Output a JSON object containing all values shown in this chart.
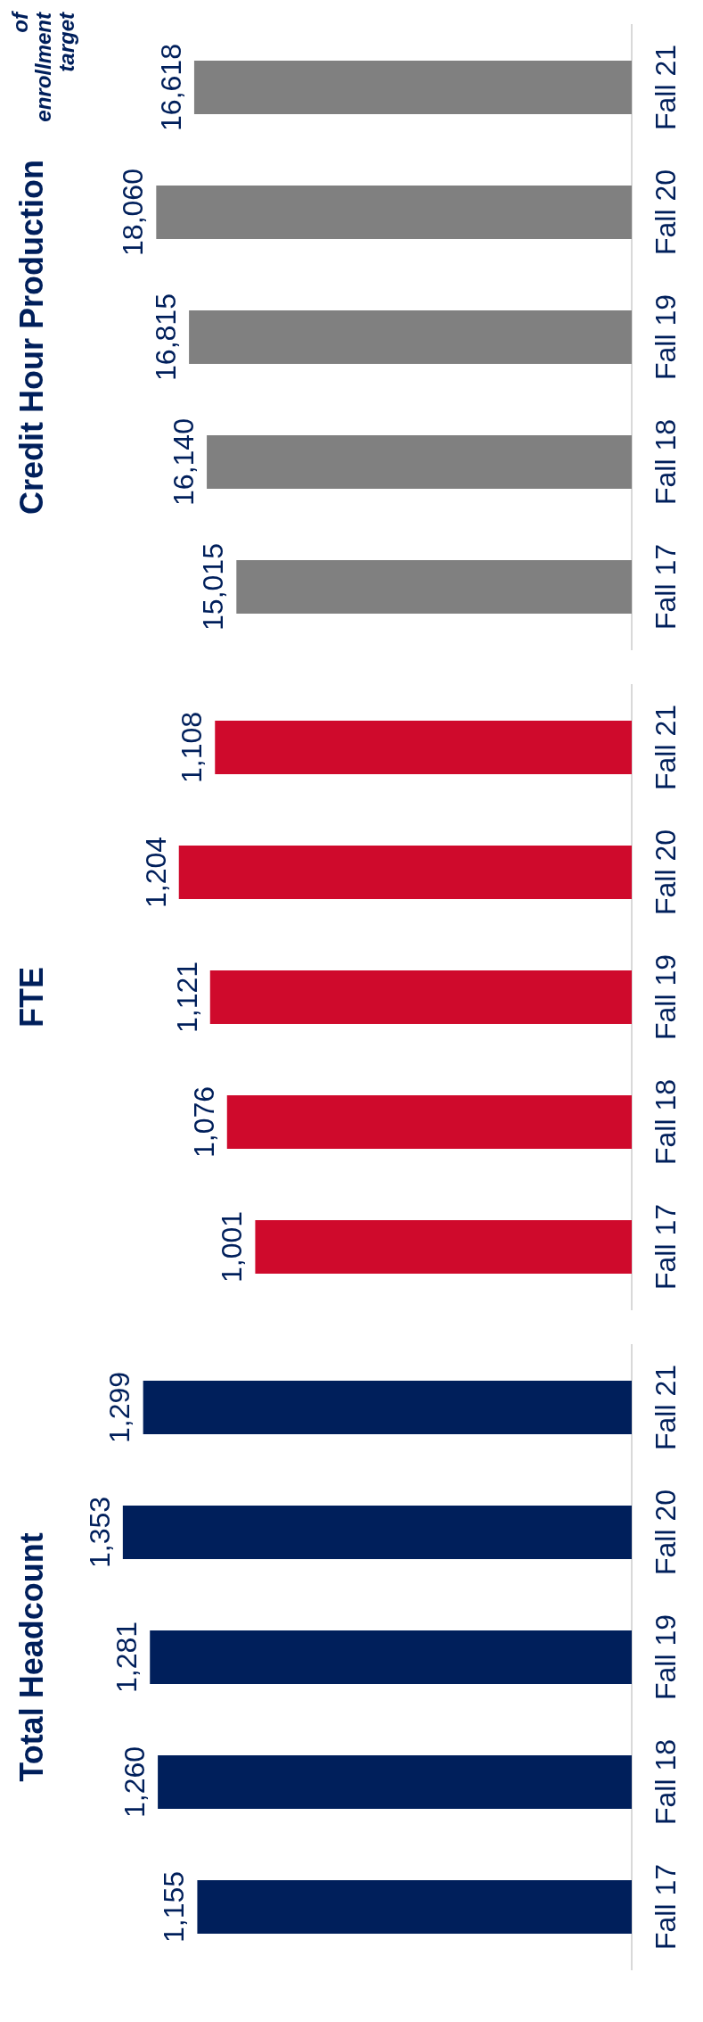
{
  "chart_data": [
    {
      "type": "bar",
      "orientation": "horizontal",
      "title": "Total Headcount",
      "categories": [
        "Fall 21",
        "Fall 20",
        "Fall 19",
        "Fall 18",
        "Fall 17"
      ],
      "values": [
        1299,
        1353,
        1281,
        1260,
        1155
      ],
      "value_labels": [
        "1,299",
        "1,353",
        "1,281",
        "1,260",
        "1,155"
      ],
      "color": "#001f5b",
      "tick_labels": "y",
      "grid": false
    },
    {
      "type": "bar",
      "orientation": "horizontal",
      "title": "FTE",
      "categories": [
        "Fall 21",
        "Fall 20",
        "Fall 19",
        "Fall 18",
        "Fall 17"
      ],
      "values": [
        1108,
        1204,
        1121,
        1076,
        1001
      ],
      "value_labels": [
        "1,108",
        "1,204",
        "1,121",
        "1,076",
        "1,001"
      ],
      "color": "#cf0a2c",
      "tick_labels": "y",
      "grid": false
    },
    {
      "type": "bar",
      "orientation": "horizontal",
      "title": "Credit Hour Production",
      "categories": [
        "Fall 21",
        "Fall 20",
        "Fall 19",
        "Fall 18",
        "Fall 17"
      ],
      "values": [
        16618,
        18060,
        16815,
        16140,
        15015
      ],
      "value_labels": [
        "16,618",
        "18,060",
        "16,815",
        "16,140",
        "15,015"
      ],
      "color": "#808080",
      "tick_labels": "y",
      "grid": false,
      "annotations": [
        "of enrollment target"
      ]
    }
  ]
}
